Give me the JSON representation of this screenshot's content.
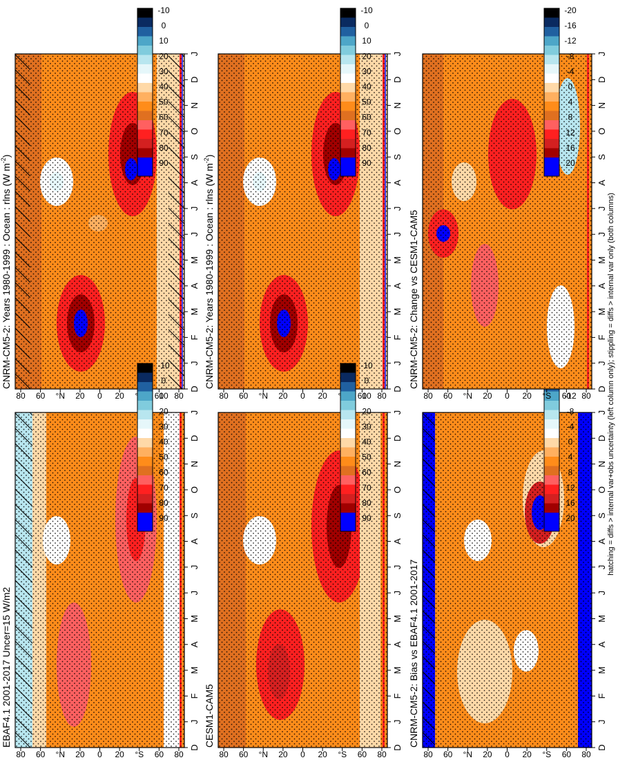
{
  "footnote": "hatching = diffs > internal var+obs uncertainty (left column only); stippling = diffs > internal var only (both columns)",
  "latitude_ticks": [
    "80",
    "60",
    "°N",
    "20",
    "0",
    "20",
    "°S",
    "60",
    "80"
  ],
  "month_ticks": [
    "D",
    "J",
    "F",
    "M",
    "A",
    "M",
    "J",
    "J",
    "A",
    "S",
    "O",
    "N",
    "D",
    "J"
  ],
  "colors": {
    "abs_scale": [
      "#0000ff",
      "#0000ff",
      "#a00000",
      "#d42020",
      "#ff2020",
      "#ff6060",
      "#e07020",
      "#ff8c1a",
      "#ffb060",
      "#ffd9a8",
      "#ffffff",
      "#e6f7fa",
      "#b8e6ef",
      "#80ccdd",
      "#4da6c8",
      "#2060a0",
      "#0a2a60",
      "#000000"
    ],
    "diff_scale": [
      "#0000ff",
      "#0000ff",
      "#a00000",
      "#d42020",
      "#ff2020",
      "#ff6060",
      "#e07020",
      "#ff8c1a",
      "#ffb060",
      "#ffd9a8",
      "#ffffff",
      "#e6f7fa",
      "#b8e6ef",
      "#80ccdd",
      "#4da6c8",
      "#2060a0",
      "#0a2a60",
      "#000000"
    ]
  },
  "chart_data": [
    {
      "type": "heatmap",
      "title": "CNRM-CM5-2: Years 1980-1999 : Ocean : rlns (W m",
      "title_sup": "-2",
      "title_end": ")",
      "x": "month",
      "y": "latitude",
      "ylim": [
        -90,
        90
      ],
      "hatching": true,
      "stippling": true,
      "colorbar": {
        "labels": [
          "90",
          "80",
          "70",
          "60",
          "50",
          "40",
          "30",
          "20",
          "10",
          "0",
          "-10"
        ]
      }
    },
    {
      "type": "heatmap",
      "title": "CNRM-CM5-2: Years 1980-1999 : Ocean : rlns (W m",
      "title_sup": "-2",
      "title_end": ")",
      "x": "month",
      "y": "latitude",
      "ylim": [
        -90,
        90
      ],
      "hatching": false,
      "stippling": true,
      "colorbar": {
        "labels": [
          "90",
          "80",
          "70",
          "60",
          "50",
          "40",
          "30",
          "20",
          "10",
          "0",
          "-10"
        ]
      }
    },
    {
      "type": "heatmap",
      "title": "EBAF4.1 2001-2017 Uncer=15 W/m2",
      "x": "month",
      "y": "latitude",
      "ylim": [
        -90,
        90
      ],
      "hatching": true,
      "stippling": true,
      "colorbar": {
        "labels": [
          "90",
          "80",
          "70",
          "60",
          "50",
          "40",
          "30",
          "20",
          "10",
          "0",
          "-10"
        ]
      }
    },
    {
      "type": "heatmap",
      "title": "CESM1-CAM5",
      "x": "month",
      "y": "latitude",
      "ylim": [
        -90,
        90
      ],
      "hatching": false,
      "stippling": true,
      "colorbar": {
        "labels": [
          "90",
          "80",
          "70",
          "60",
          "50",
          "40",
          "30",
          "20",
          "10",
          "0",
          "-10"
        ]
      }
    },
    {
      "type": "heatmap",
      "title": "CNRM-CM5-2: Bias vs EBAF4.1 2001-2017",
      "x": "month",
      "y": "latitude",
      "ylim": [
        -90,
        90
      ],
      "hatching": true,
      "stippling": true,
      "colorbar": {
        "labels": [
          "20",
          "16",
          "12",
          "8",
          "4",
          "0",
          "-4",
          "-8",
          "-12",
          "-16",
          "-20"
        ]
      }
    },
    {
      "type": "heatmap",
      "title": "CNRM-CM5-2: Change vs CESM1-CAM5",
      "x": "month",
      "y": "latitude",
      "ylim": [
        -90,
        90
      ],
      "hatching": false,
      "stippling": true,
      "colorbar": {
        "labels": [
          "20",
          "16",
          "12",
          "8",
          "4",
          "0",
          "-4",
          "-8",
          "-12",
          "-16",
          "-20"
        ]
      }
    }
  ]
}
